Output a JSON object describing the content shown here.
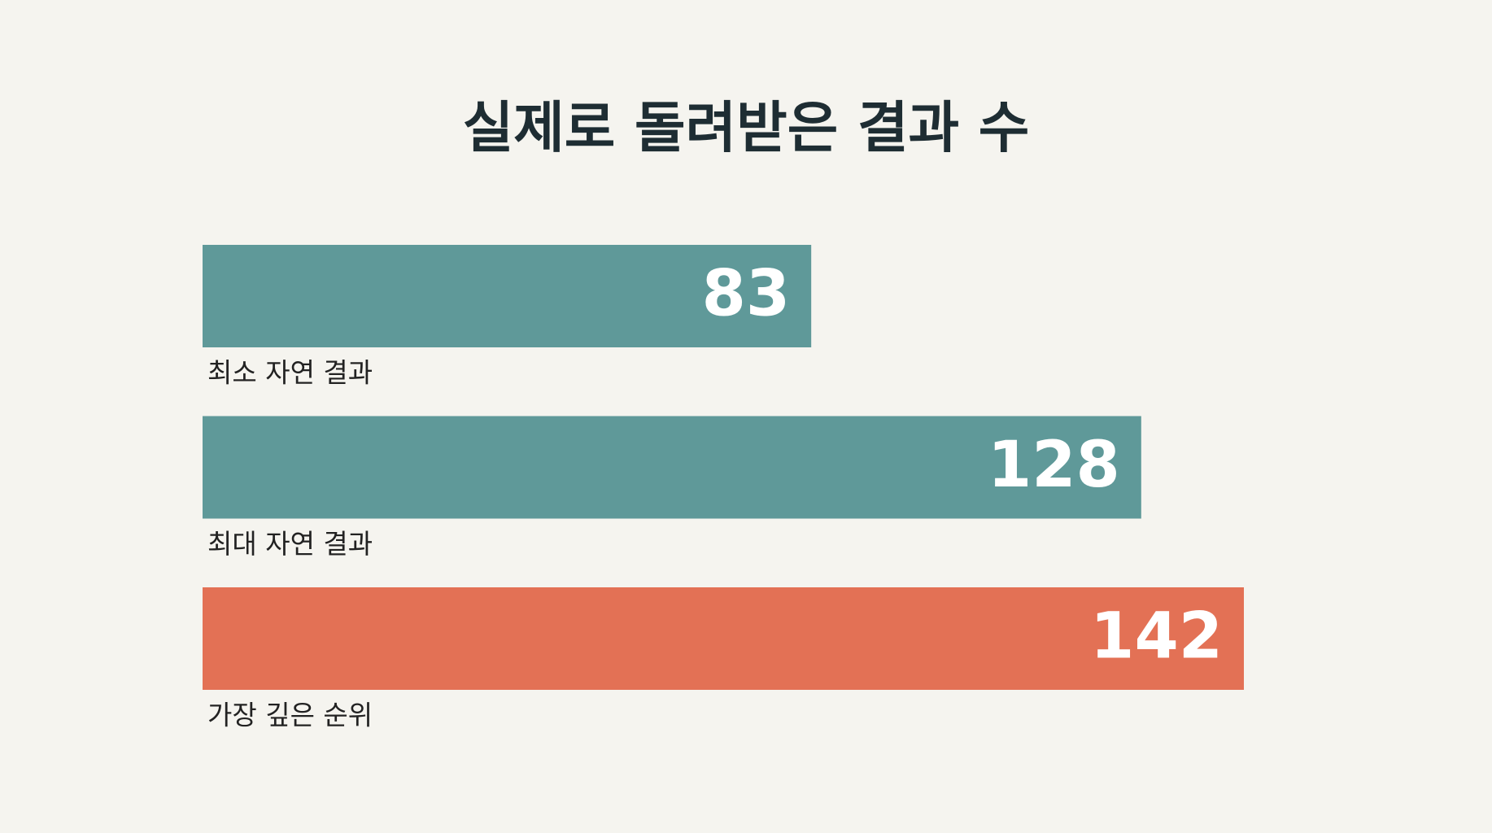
{
  "chart_data": {
    "type": "bar",
    "orientation": "horizontal",
    "title": "실제로 돌려받은 결과 수",
    "categories": [
      "최소 자연 결과",
      "최대 자연 결과",
      "가장 깊은 순위"
    ],
    "values": [
      83,
      128,
      142
    ],
    "colors": [
      "#5f9999",
      "#5f9999",
      "#e37155"
    ]
  }
}
